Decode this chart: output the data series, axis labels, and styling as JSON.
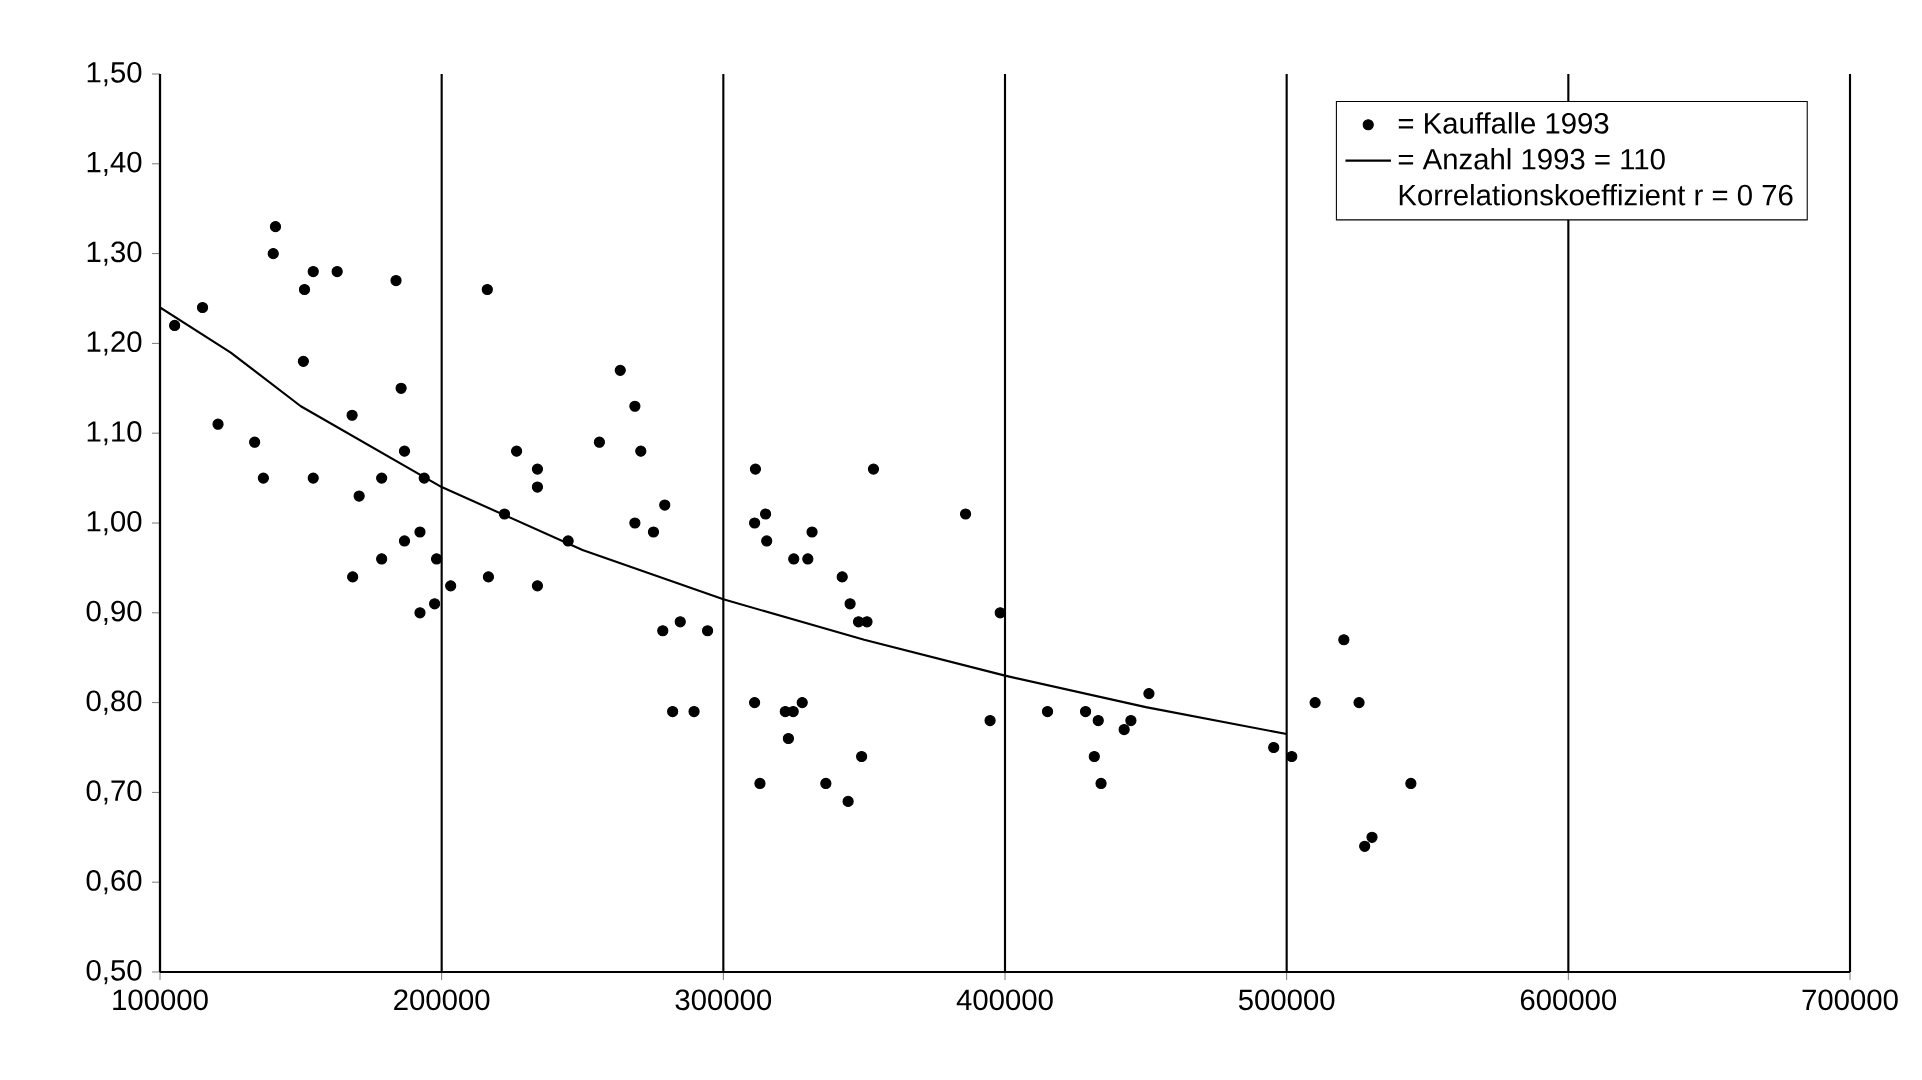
{
  "chart_data": {
    "type": "scatter",
    "xlim": [
      100000,
      700000
    ],
    "ylim": [
      0.5,
      1.5
    ],
    "xticks": [
      100000,
      200000,
      300000,
      400000,
      500000,
      600000,
      700000
    ],
    "yticks": [
      {
        "value": 0.5,
        "label": "0,50"
      },
      {
        "value": 0.6,
        "label": "0,60"
      },
      {
        "value": 0.7,
        "label": "0,70"
      },
      {
        "value": 0.8,
        "label": "0,80"
      },
      {
        "value": 0.9,
        "label": "0,90"
      },
      {
        "value": 1.0,
        "label": "1,00"
      },
      {
        "value": 1.1,
        "label": "1,10"
      },
      {
        "value": 1.2,
        "label": "1,20"
      },
      {
        "value": 1.3,
        "label": "1,30"
      },
      {
        "value": 1.4,
        "label": "1,40"
      },
      {
        "value": 1.5,
        "label": "1,50"
      }
    ],
    "grid": "x",
    "legend": "top right",
    "annotations": [
      "Korrelationskoeffizient r = 0 76"
    ],
    "series": [
      {
        "name": "= Kauffalle 1993",
        "color": "#000000",
        "x": [
          141000,
          140200,
          105200,
          115100,
          120600,
          133600,
          136700,
          151300,
          154400,
          162900,
          150900,
          154400,
          168200,
          170700,
          168400,
          178700,
          183800,
          185600,
          186800,
          193800,
          178700,
          186800,
          192300,
          198200,
          192300,
          197500,
          203200,
          216200,
          216600,
          226600,
          222300,
          234000,
          234000,
          234000,
          244900,
          256000,
          263400,
          268600,
          270700,
          279200,
          268600,
          275200,
          278500,
          284700,
          294400,
          282000,
          289600,
          311400,
          311100,
          315000,
          315400,
          311100,
          324800,
          323100,
          353300,
          325000,
          330000,
          331500,
          342200,
          345000,
          348000,
          351000,
          322000,
          328000,
          349100,
          313000,
          336400,
          344300,
          398300,
          386000,
          394700,
          415100,
          428600,
          433100,
          431700,
          434100,
          442300,
          444700,
          451100,
          495400,
          501800,
          520300,
          510100,
          525700,
          544100,
          527700,
          530300
        ],
        "values": [
          1.33,
          1.3,
          1.22,
          1.24,
          1.11,
          1.09,
          1.05,
          1.26,
          1.28,
          1.28,
          1.18,
          1.05,
          1.12,
          1.03,
          0.94,
          1.05,
          1.27,
          1.15,
          1.08,
          1.05,
          0.96,
          0.98,
          0.99,
          0.96,
          0.9,
          0.91,
          0.93,
          1.26,
          0.94,
          1.08,
          1.01,
          1.06,
          1.04,
          0.93,
          0.98,
          1.09,
          1.17,
          1.13,
          1.08,
          1.02,
          1.0,
          0.99,
          0.88,
          0.89,
          0.88,
          0.79,
          0.79,
          1.06,
          1.0,
          1.01,
          0.98,
          0.8,
          0.79,
          0.76,
          1.06,
          0.96,
          0.96,
          0.99,
          0.94,
          0.91,
          0.89,
          0.89,
          0.79,
          0.8,
          0.74,
          0.71,
          0.71,
          0.69,
          0.9,
          1.01,
          0.78,
          0.79,
          0.79,
          0.78,
          0.74,
          0.71,
          0.77,
          0.78,
          0.81,
          0.75,
          0.74,
          0.87,
          0.8,
          0.8,
          0.71,
          0.64,
          0.65
        ]
      },
      {
        "name": "= Anzahl 1993 = 110",
        "type": "line",
        "color": "#000000",
        "x": [
          100000,
          125000,
          150000,
          200000,
          250000,
          300000,
          350000,
          400000,
          450000,
          500000
        ],
        "values": [
          1.24,
          1.19,
          1.13,
          1.04,
          0.97,
          0.915,
          0.87,
          0.83,
          0.795,
          0.765
        ]
      }
    ]
  }
}
